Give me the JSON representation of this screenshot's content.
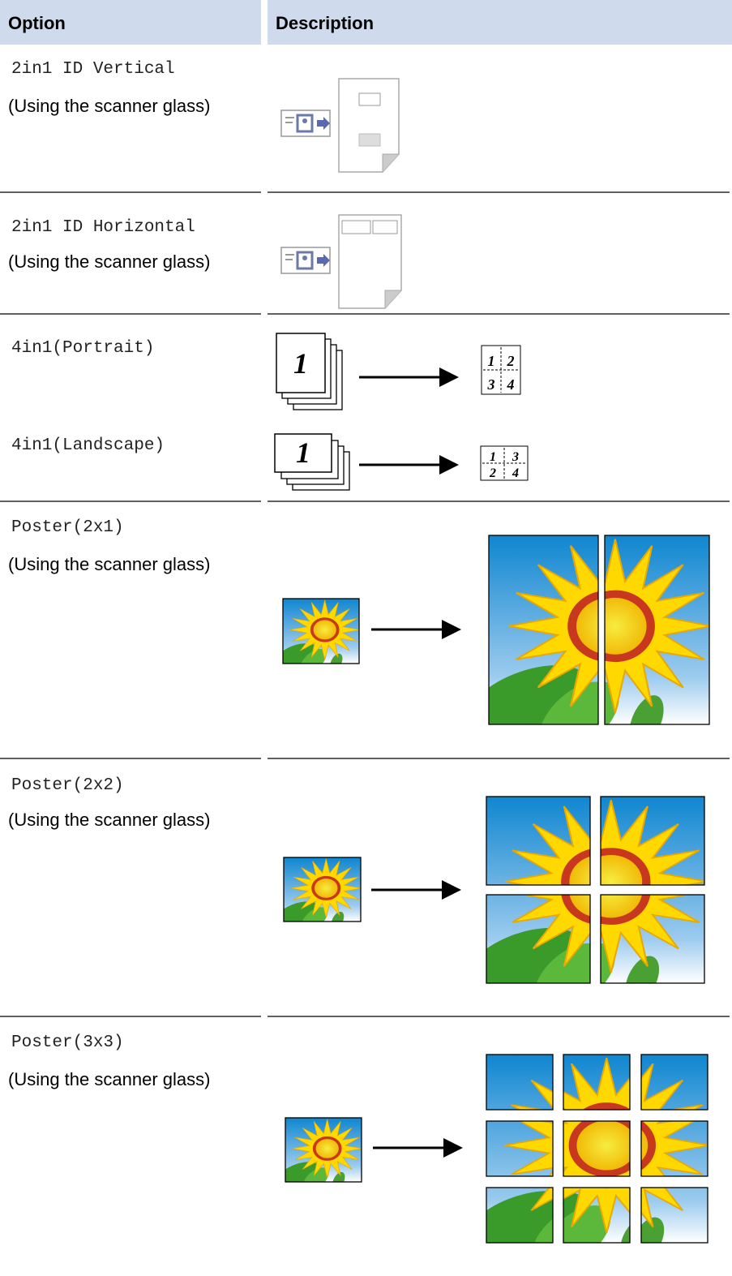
{
  "table": {
    "header": [
      "Option",
      "Description"
    ],
    "rows": [
      {
        "option": "2in1 ID Vertical",
        "note": "(Using the scanner glass)"
      },
      {
        "option": "2in1 ID Horizontal",
        "note": "(Using the scanner glass)"
      },
      {
        "option": "4in1(Portrait)",
        "illustration": {
          "stack_label": "1",
          "grid_labels": [
            "1",
            "2",
            "3",
            "4"
          ]
        }
      },
      {
        "option": "4in1(Landscape)",
        "illustration": {
          "stack_label": "1",
          "grid_labels": [
            "1",
            "3",
            "2",
            "4"
          ]
        }
      },
      {
        "option": "Poster(2x1)",
        "note": "(Using the scanner glass)"
      },
      {
        "option": "Poster(2x2)",
        "note": "(Using the scanner glass)"
      },
      {
        "option": "Poster(3x3)",
        "note": "(Using the scanner glass)"
      }
    ]
  }
}
